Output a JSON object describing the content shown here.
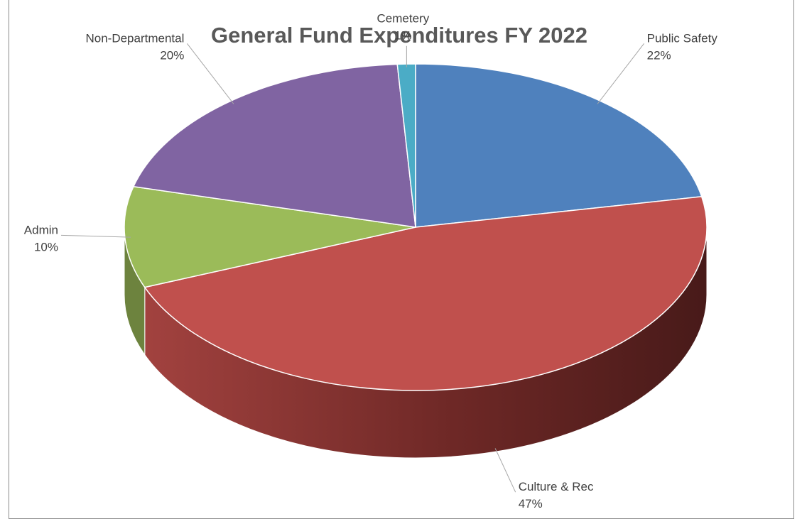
{
  "chart_data": {
    "type": "pie",
    "title": "General Fund Expenditures FY 2022",
    "slices": [
      {
        "name": "Public Safety",
        "label": "22%",
        "value": 22,
        "color": "#4f81bd"
      },
      {
        "name": "Culture & Rec",
        "label": "47%",
        "value": 47,
        "color": "#c0504d"
      },
      {
        "name": "Admin",
        "label": "10%",
        "value": 10,
        "color": "#9bbb59"
      },
      {
        "name": "Non-Departmental",
        "label": "20%",
        "value": 20,
        "color": "#8064a2"
      },
      {
        "name": "Cemetery",
        "label": "1%",
        "value": 1,
        "color": "#4bacc6"
      }
    ],
    "legend": "none",
    "style": "3d-pie"
  }
}
